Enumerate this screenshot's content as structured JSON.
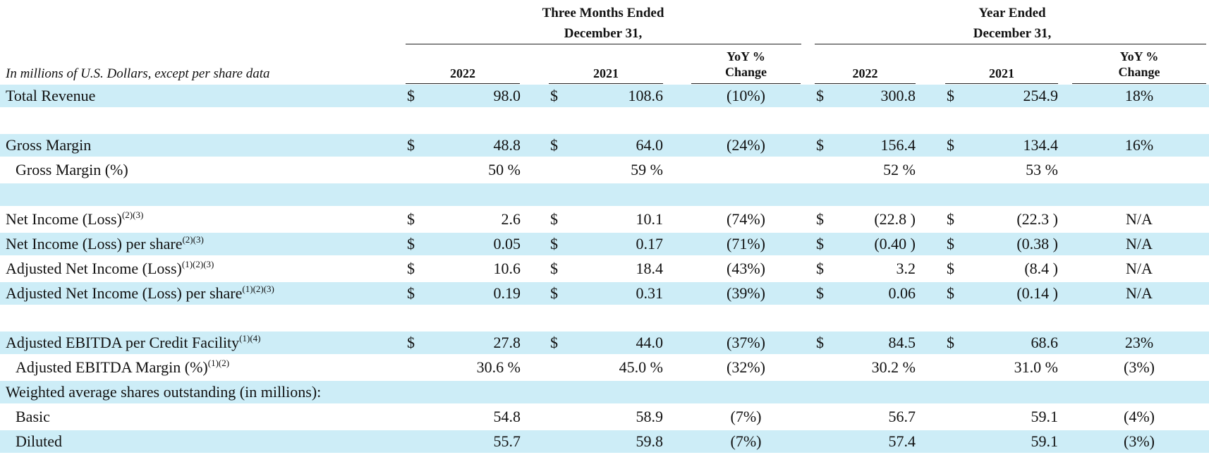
{
  "header": {
    "units_note": "In millions of U.S. Dollars, except per share data",
    "group_three_months": [
      "Three Months Ended",
      "December 31,"
    ],
    "group_year": [
      "Year Ended",
      "December 31,"
    ],
    "columns": {
      "q_2022": "2022",
      "q_2021": "2021",
      "q_yoy": [
        "YoY %",
        "Change"
      ],
      "y_2022": "2022",
      "y_2021": "2021",
      "y_yoy": [
        "YoY %",
        "Change"
      ]
    }
  },
  "rows": [
    {
      "label": "Total Revenue",
      "sup": "",
      "indent": false,
      "shade": true,
      "cur": [
        "$",
        "$",
        "$",
        "$"
      ],
      "q2022": "98.0",
      "q2021": "108.6",
      "qchg": "(10%)",
      "y2022": "300.8",
      "y2021": "254.9",
      "ychg": "18%"
    },
    {
      "label": "",
      "sup": "",
      "indent": false,
      "shade": false,
      "cur": [
        "",
        "",
        "",
        ""
      ],
      "q2022": "",
      "q2021": "",
      "qchg": "",
      "y2022": "",
      "y2021": "",
      "ychg": ""
    },
    {
      "label": "Gross Margin",
      "sup": "",
      "indent": false,
      "shade": true,
      "cur": [
        "$",
        "$",
        "$",
        "$"
      ],
      "q2022": "48.8",
      "q2021": "64.0",
      "qchg": "(24%)",
      "y2022": "156.4",
      "y2021": "134.4",
      "ychg": "16%"
    },
    {
      "label": "Gross Margin (%)",
      "sup": "",
      "indent": true,
      "shade": false,
      "cur": [
        "",
        "",
        "",
        ""
      ],
      "q2022": "50 %",
      "q2021": "59 %",
      "qchg": "",
      "y2022": "52 %",
      "y2021": "53 %",
      "ychg": ""
    },
    {
      "label": "",
      "sup": "",
      "indent": false,
      "shade": true,
      "cur": [
        "",
        "",
        "",
        ""
      ],
      "q2022": "",
      "q2021": "",
      "qchg": "",
      "y2022": "",
      "y2021": "",
      "ychg": ""
    },
    {
      "label": "Net Income (Loss)",
      "sup": "(2)(3)",
      "indent": false,
      "shade": false,
      "cur": [
        "$",
        "$",
        "$",
        "$"
      ],
      "q2022": "2.6",
      "q2021": "10.1",
      "qchg": "(74%)",
      "y2022": "(22.8 )",
      "y2021": "(22.3 )",
      "ychg": "N/A"
    },
    {
      "label": "Net Income (Loss) per share",
      "sup": "(2)(3)",
      "indent": false,
      "shade": true,
      "cur": [
        "$",
        "$",
        "$",
        "$"
      ],
      "q2022": "0.05",
      "q2021": "0.17",
      "qchg": "(71%)",
      "y2022": "(0.40 )",
      "y2021": "(0.38 )",
      "ychg": "N/A"
    },
    {
      "label": "Adjusted Net Income (Loss)",
      "sup": "(1)(2)(3)",
      "indent": false,
      "shade": false,
      "cur": [
        "$",
        "$",
        "$",
        "$"
      ],
      "q2022": "10.6",
      "q2021": "18.4",
      "qchg": "(43%)",
      "y2022": "3.2",
      "y2021": "(8.4 )",
      "ychg": "N/A"
    },
    {
      "label": "Adjusted Net Income (Loss) per share",
      "sup": "(1)(2)(3)",
      "indent": false,
      "shade": true,
      "cur": [
        "$",
        "$",
        "$",
        "$"
      ],
      "q2022": "0.19",
      "q2021": "0.31",
      "qchg": "(39%)",
      "y2022": "0.06",
      "y2021": "(0.14 )",
      "ychg": "N/A"
    },
    {
      "label": "",
      "sup": "",
      "indent": false,
      "shade": false,
      "cur": [
        "",
        "",
        "",
        ""
      ],
      "q2022": "",
      "q2021": "",
      "qchg": "",
      "y2022": "",
      "y2021": "",
      "ychg": ""
    },
    {
      "label": "Adjusted EBITDA per Credit Facility",
      "sup": "(1)(4)",
      "indent": false,
      "shade": true,
      "cur": [
        "$",
        "$",
        "$",
        "$"
      ],
      "q2022": "27.8",
      "q2021": "44.0",
      "qchg": "(37%)",
      "y2022": "84.5",
      "y2021": "68.6",
      "ychg": "23%"
    },
    {
      "label": "Adjusted EBITDA Margin (%)",
      "sup": "(1)(2)",
      "indent": true,
      "shade": false,
      "cur": [
        "",
        "",
        "",
        ""
      ],
      "q2022": "30.6 %",
      "q2021": "45.0 %",
      "qchg": "(32%)",
      "y2022": "30.2 %",
      "y2021": "31.0 %",
      "ychg": "(3%)"
    },
    {
      "label": "Weighted average shares outstanding (in millions):",
      "sup": "",
      "indent": false,
      "shade": true,
      "cur": [
        "",
        "",
        "",
        ""
      ],
      "q2022": "",
      "q2021": "",
      "qchg": "",
      "y2022": "",
      "y2021": "",
      "ychg": ""
    },
    {
      "label": "Basic",
      "sup": "",
      "indent": true,
      "shade": false,
      "cur": [
        "",
        "",
        "",
        ""
      ],
      "q2022": "54.8",
      "q2021": "58.9",
      "qchg": "(7%)",
      "y2022": "56.7",
      "y2021": "59.1",
      "ychg": "(4%)"
    },
    {
      "label": "Diluted",
      "sup": "",
      "indent": true,
      "shade": true,
      "cur": [
        "",
        "",
        "",
        ""
      ],
      "q2022": "55.7",
      "q2021": "59.8",
      "qchg": "(7%)",
      "y2022": "57.4",
      "y2021": "59.1",
      "ychg": "(3%)"
    }
  ]
}
